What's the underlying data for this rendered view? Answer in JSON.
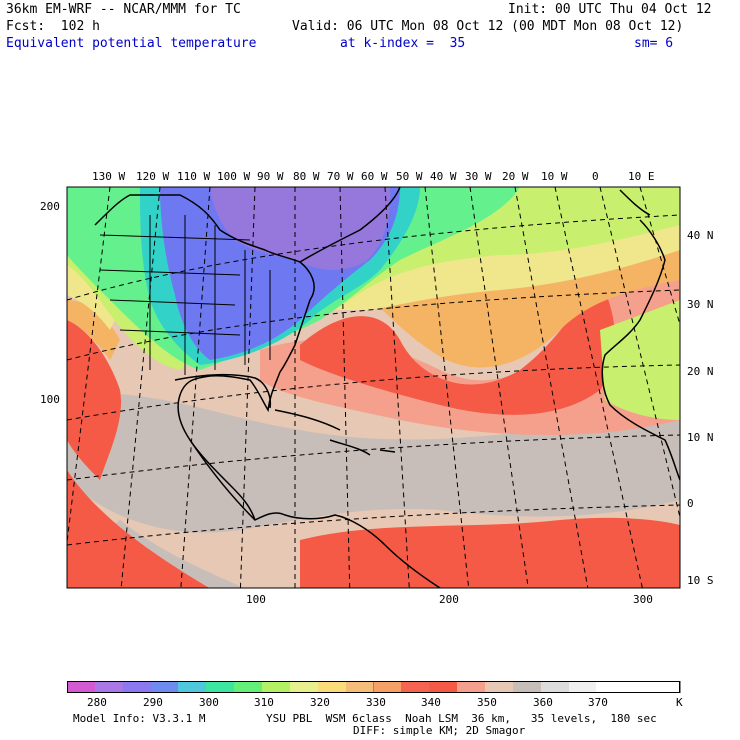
{
  "header": {
    "model": "36km EM-WRF -- NCAR/MMM for TC",
    "init": "Init: 00 UTC Thu 04 Oct 12",
    "fcst": "Fcst:  102 h",
    "valid": "Valid: 06 UTC Mon 08 Oct 12 (00 MDT Mon 08 Oct 12)",
    "field": "Equivalent potential temperature",
    "level": "at k-index =  35",
    "smooth": "sm= 6"
  },
  "map": {
    "lon_labels": [
      "130 W",
      "120 W",
      "110 W",
      "100 W",
      "90 W",
      "80 W",
      "70 W",
      "60 W",
      "50 W",
      "40 W",
      "30 W",
      "20 W",
      "10 W",
      "0",
      "10 E"
    ],
    "lat_labels": [
      "40 N",
      "30 N",
      "20 N",
      "10 N",
      "0",
      "10 S"
    ],
    "y_grid_labels": [
      "200",
      "100"
    ],
    "x_grid_labels": [
      "100",
      "200",
      "300"
    ],
    "colors": {
      "purple": "#9678dc",
      "blue": "#6e78f0",
      "cyan": "#32d2c8",
      "green": "#64f08c",
      "lightgreen": "#c8f06e",
      "yellow": "#f0e68c",
      "orange": "#f5b464",
      "red": "#f55a46",
      "salmon": "#f5a08c",
      "tan": "#e6c8b4",
      "gray": "#c8beb9",
      "land_line": "#000000"
    }
  },
  "colorbar": {
    "colors": [
      "#d25ad2",
      "#aa78e6",
      "#8c78f0",
      "#6e8cf0",
      "#50c8dc",
      "#3ce6a0",
      "#64f078",
      "#b4f064",
      "#e6f08c",
      "#fadc78",
      "#f5be78",
      "#f5a064",
      "#f56450",
      "#f55a46",
      "#f5a08c",
      "#e6c8b4",
      "#c8beb9",
      "#dcdcdc",
      "#f0f0f0",
      "#ffffff",
      "#ffffff",
      "#ffffff"
    ],
    "labels": [
      "280",
      "290",
      "300",
      "310",
      "320",
      "330",
      "340",
      "350",
      "360",
      "370"
    ],
    "unit": "K"
  },
  "footer": {
    "line1_left": "Model Info: V3.3.1 M",
    "line1_right": "YSU PBL  WSM 6class  Noah LSM  36 km,   35 levels,  180 sec",
    "line2": "DIFF: simple KM; 2D Smagor"
  }
}
